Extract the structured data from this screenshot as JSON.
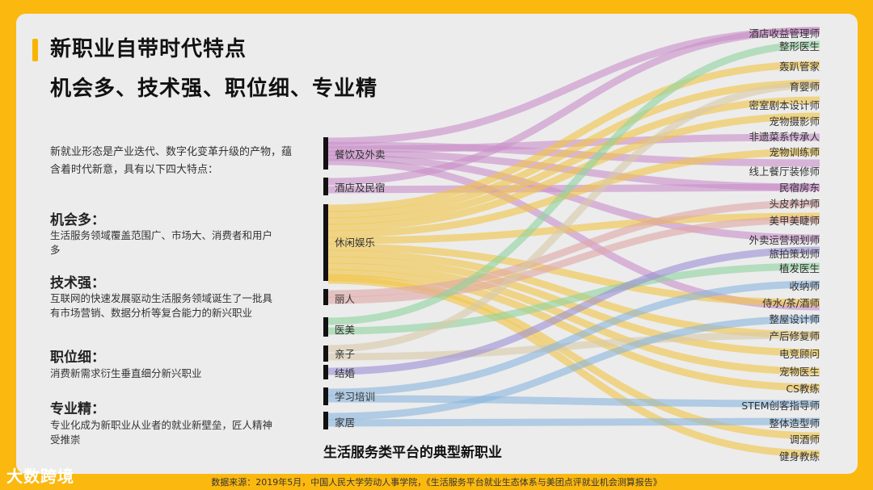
{
  "header": {
    "title_line1": "新职业自带时代特点",
    "title_line2": "机会多、技术强、职位细、专业精"
  },
  "intro": "新就业形态是产业迭代、数字化变革升级的产物，蕴含着时代新意，具有以下四大特点：",
  "features": [
    {
      "title": "机会多：",
      "desc": "生活服务领域覆盖范围广、市场大、消费者和用户多"
    },
    {
      "title": "技术强：",
      "desc": "互联网的快速发展驱动生活服务领域诞生了一批具有市场营销、数据分析等复合能力的新兴职业"
    },
    {
      "title": "职位细：",
      "desc": "消费新需求衍生垂直细分新兴职业"
    },
    {
      "title": "专业精：",
      "desc": "专业化成为新职业从业者的就业新壁垒，匠人精神受推崇"
    }
  ],
  "sources": [
    "餐饮及外卖",
    "酒店及民宿",
    "休闲娱乐",
    "丽人",
    "医美",
    "亲子",
    "结婚",
    "学习培训",
    "家居"
  ],
  "targets": [
    "酒店收益管理师",
    "整形医生",
    "轰趴管家",
    "育婴师",
    "密室剧本设计师",
    "宠物摄影师",
    "非遗菜系传承人",
    "宠物训练师",
    "线上餐厅装修师",
    "民宿房东",
    "头皮养护师",
    "美甲美睫师",
    "外卖运营规划师",
    "旅拍策划师",
    "植发医生",
    "收纳师",
    "侍水/茶/酒师",
    "整屋设计师",
    "产后修复师",
    "电竞顾问",
    "宠物医生",
    "CS教练",
    "STEM创客指导师",
    "整体造型师",
    "调酒师",
    "健身教练"
  ],
  "colors": {
    "food": "#C98FC9",
    "hotel": "#C98FC9",
    "leisure": "#F2C544",
    "beauty": "#E0A7A7",
    "medical": "#8DD39E",
    "parenting": "#D8C9A8",
    "wedding": "#9B8FD6",
    "training": "#88B6DE",
    "home": "#88B6DE"
  },
  "caption": "生活服务类平台的典型新职业",
  "source_note": "数据来源：2019年5月，中国人民大学劳动人事学院，《生活服务平台就业生态体系与美团点评就业机会测算报告》",
  "brand": "大数跨境"
}
